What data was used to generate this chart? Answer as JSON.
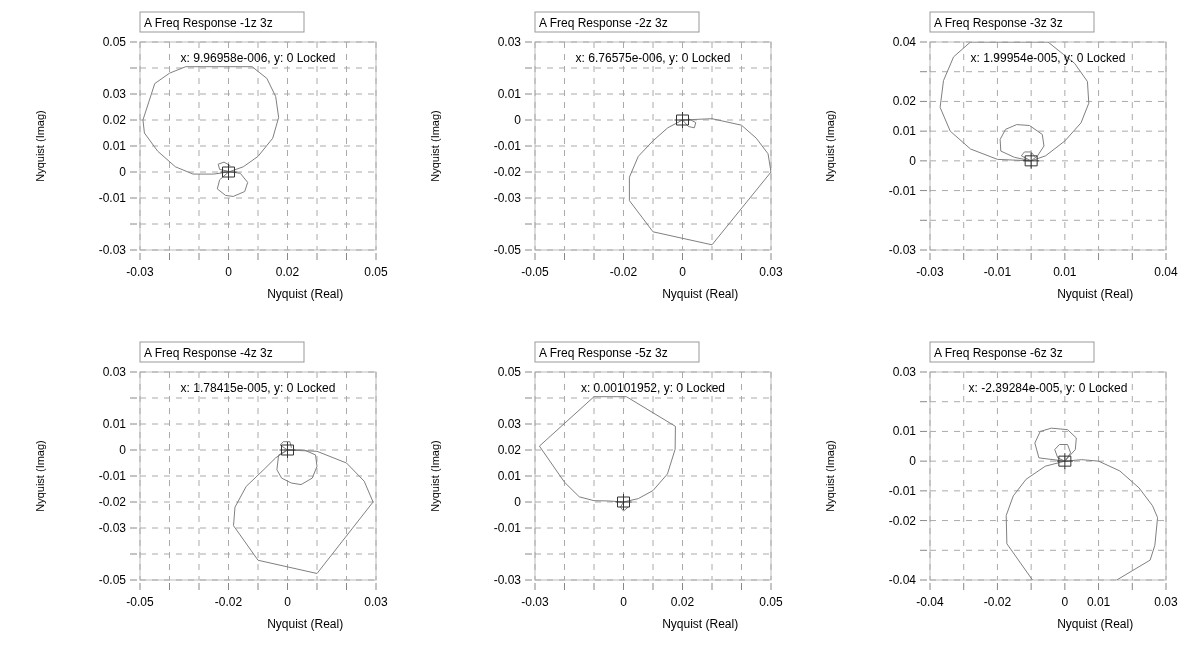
{
  "chart_data": [
    {
      "type": "line",
      "title": "A Freq Response -1z 3z",
      "xlabel": "Nyquist (Real)",
      "ylabel": "Nyquist (Imag)",
      "grid": true,
      "xlim": [
        -0.03,
        0.05
      ],
      "ylim": [
        -0.03,
        0.05
      ],
      "xticks": [
        -0.03,
        {
          "value": -0.02,
          "label": null
        },
        {
          "value": -0.01,
          "label": null
        },
        0,
        {
          "value": 0.01,
          "label": null
        },
        0.02,
        {
          "value": 0.03,
          "label": null
        },
        {
          "value": 0.04,
          "label": null
        },
        0.05
      ],
      "yticks": [
        -0.03,
        {
          "value": -0.02,
          "label": null
        },
        -0.01,
        0,
        0.01,
        0.02,
        0.03,
        {
          "value": 0.04,
          "label": null
        },
        0.05
      ],
      "annotations": [
        "x: 9.96958e-006, y: 0 Locked"
      ],
      "series": [
        {
          "color": "#808080",
          "x": [
            0,
            -0.005,
            -0.012,
            -0.018,
            -0.024,
            -0.0285,
            -0.029,
            -0.027,
            -0.025,
            -0.02,
            -0.0145,
            0.008,
            0.013,
            0.016,
            0.017,
            0.015,
            0.01,
            0.005,
            0,
            -0.003,
            -0.0038,
            -0.001,
            0.0016,
            0.0055,
            0.0065,
            0.004,
            0.001,
            -0.003,
            -0.0035,
            -0.0015,
            0.0005
          ],
          "values": [
            0,
            -0.0008,
            -0.0008,
            0.002,
            0.008,
            0.015,
            0.02,
            0.027,
            0.034,
            0.038,
            0.0405,
            0.0405,
            0.036,
            0.029,
            0.021,
            0.013,
            0.006,
            0.002,
            0,
            -0.003,
            -0.0065,
            -0.009,
            -0.0094,
            -0.0075,
            -0.004,
            -0.0005,
            0,
            0.001,
            0.003,
            0.0038,
            0.0025
          ]
        }
      ]
    },
    {
      "type": "line",
      "title": "A Freq Response -2z 3z",
      "xlabel": "Nyquist (Real)",
      "ylabel": "Nyquist (Imag)",
      "grid": true,
      "xlim": [
        -0.05,
        0.03
      ],
      "ylim": [
        -0.05,
        0.03
      ],
      "xticks": [
        -0.05,
        {
          "value": -0.04,
          "label": null
        },
        {
          "value": -0.03,
          "label": null
        },
        -0.02,
        {
          "value": -0.01,
          "label": null
        },
        0,
        {
          "value": 0.01,
          "label": null
        },
        {
          "value": 0.02,
          "label": null
        },
        0.03
      ],
      "yticks": [
        -0.05,
        {
          "value": -0.04,
          "label": null
        },
        -0.03,
        -0.02,
        -0.01,
        0,
        0.01,
        {
          "value": 0.02,
          "label": null
        },
        0.03
      ],
      "annotations": [
        "x: 6.76575e-006, y: 0 Locked"
      ],
      "series": [
        {
          "color": "#808080",
          "x": [
            0,
            0.01,
            0.02,
            0.025,
            0.029,
            0.03,
            0.01,
            -0.01,
            -0.018,
            -0.018,
            -0.015,
            -0.01,
            -0.005,
            0,
            0.002,
            0.004,
            0.0045,
            0.002
          ],
          "values": [
            0,
            0.0005,
            -0.002,
            -0.007,
            -0.013,
            -0.02,
            -0.048,
            -0.043,
            -0.031,
            -0.022,
            -0.014,
            -0.008,
            -0.003,
            0,
            -0.0025,
            -0.003,
            -0.001,
            0.0005
          ]
        }
      ]
    },
    {
      "type": "line",
      "title": "A Freq Response -3z 3z",
      "xlabel": "Nyquist (Real)",
      "ylabel": "Nyquist (Imag)",
      "grid": true,
      "xlim": [
        -0.03,
        0.04
      ],
      "ylim": [
        -0.03,
        0.04
      ],
      "xticks": [
        -0.03,
        {
          "value": -0.02,
          "label": null
        },
        -0.01,
        {
          "value": 0,
          "label": null
        },
        0.01,
        {
          "value": 0.02,
          "label": null
        },
        {
          "value": 0.03,
          "label": null
        },
        0.04
      ],
      "yticks": [
        -0.03,
        {
          "value": -0.02,
          "label": null
        },
        -0.01,
        0,
        0.01,
        0.02,
        {
          "value": 0.03,
          "label": null
        },
        0.04
      ],
      "annotations": [
        "x: 1.99954e-005, y: 0 Locked"
      ],
      "series": [
        {
          "color": "#808080",
          "x": [
            0,
            -0.01,
            -0.018,
            -0.024,
            -0.027,
            -0.026,
            -0.023,
            -0.018,
            0.005,
            0.0129,
            0.0167,
            0.0171,
            0.0148,
            0.01,
            0.0043,
            0,
            -0.005,
            -0.009,
            -0.0092,
            -0.0076,
            -0.0043,
            -0.0005,
            0.0033,
            0.0038,
            0.0019,
            0,
            -0.0029,
            -0.002,
            0,
            0.001
          ],
          "values": [
            0,
            0.0005,
            0.004,
            0.01,
            0.018,
            0.027,
            0.035,
            0.04,
            0.04,
            0.0328,
            0.0267,
            0.0194,
            0.0128,
            0.0067,
            0.0017,
            0,
            0.0012,
            0.0033,
            0.0072,
            0.0106,
            0.0122,
            0.0119,
            0.0089,
            0.005,
            0.0017,
            0,
            0.0017,
            0.003,
            0.003,
            0.0015
          ]
        }
      ]
    },
    {
      "type": "line",
      "title": "A Freq Response -4z 3z",
      "xlabel": "Nyquist (Real)",
      "ylabel": "Nyquist (Imag)",
      "grid": true,
      "xlim": [
        -0.05,
        0.03
      ],
      "ylim": [
        -0.05,
        0.03
      ],
      "xticks": [
        -0.05,
        {
          "value": -0.04,
          "label": null
        },
        {
          "value": -0.03,
          "label": null
        },
        -0.02,
        {
          "value": -0.01,
          "label": null
        },
        0,
        {
          "value": 0.01,
          "label": null
        },
        {
          "value": 0.02,
          "label": null
        },
        0.03
      ],
      "yticks": [
        -0.05,
        {
          "value": -0.04,
          "label": null
        },
        -0.03,
        -0.02,
        -0.01,
        0,
        0.01,
        {
          "value": 0.02,
          "label": null
        },
        0.03
      ],
      "annotations": [
        "x: 1.78415e-005, y: 0 Locked"
      ],
      "series": [
        {
          "color": "#808080",
          "x": [
            0,
            0.01,
            0.02,
            0.026,
            0.029,
            0.01,
            -0.01,
            -0.0183,
            -0.0178,
            -0.014,
            -0.008,
            -0.004,
            0,
            -0.003,
            -0.0036,
            -0.002,
            0.0013,
            0.0046,
            0.0084,
            0.01,
            0.0095,
            0.0057,
            0,
            -0.0025,
            -0.0014,
            0.0008,
            0.0013
          ],
          "values": [
            0,
            -0.0005,
            -0.005,
            -0.012,
            -0.02,
            -0.0475,
            -0.0424,
            -0.0291,
            -0.022,
            -0.014,
            -0.0075,
            -0.003,
            0,
            -0.0019,
            -0.0076,
            -0.0108,
            -0.0127,
            -0.0133,
            -0.0108,
            -0.0063,
            -0.0019,
            0,
            0,
            0.0019,
            0.0032,
            0.0032,
            0.001
          ]
        }
      ]
    },
    {
      "type": "line",
      "title": "A Freq Response -5z 3z",
      "xlabel": "Nyquist (Real)",
      "ylabel": "Nyquist (Imag)",
      "grid": true,
      "xlim": [
        -0.03,
        0.05
      ],
      "ylim": [
        -0.03,
        0.05
      ],
      "xticks": [
        -0.03,
        {
          "value": -0.02,
          "label": null
        },
        {
          "value": -0.01,
          "label": null
        },
        0,
        {
          "value": 0.01,
          "label": null
        },
        0.02,
        {
          "value": 0.03,
          "label": null
        },
        {
          "value": 0.04,
          "label": null
        },
        0.05
      ],
      "yticks": [
        -0.03,
        {
          "value": -0.02,
          "label": null
        },
        -0.01,
        0,
        0.01,
        0.02,
        0.03,
        {
          "value": 0.04,
          "label": null
        },
        0.05
      ],
      "annotations": [
        "x: 0.00101952, y: 0 Locked"
      ],
      "series": [
        {
          "color": "#808080",
          "x": [
            0,
            -0.005,
            -0.01,
            -0.015,
            -0.02,
            -0.0285,
            -0.01,
            0.001,
            0.0176,
            0.0175,
            0.0149,
            0.01,
            0.005,
            0,
            -0.001,
            0,
            0.0015
          ],
          "values": [
            0,
            0.0004,
            0.0005,
            0.002,
            0.0076,
            0.0215,
            0.0405,
            0.0405,
            0.0291,
            0.0203,
            0.0108,
            0.0044,
            0.0013,
            0,
            -0.002,
            -0.0035,
            -0.002
          ]
        }
      ]
    },
    {
      "type": "line",
      "title": "A Freq Response -6z 3z",
      "xlabel": "Nyquist (Real)",
      "ylabel": "Nyquist (Imag)",
      "grid": true,
      "xlim": [
        -0.04,
        0.03
      ],
      "ylim": [
        -0.04,
        0.03
      ],
      "xticks": [
        -0.04,
        {
          "value": -0.03,
          "label": null
        },
        -0.02,
        {
          "value": -0.01,
          "label": null
        },
        0,
        0.01,
        {
          "value": 0.02,
          "label": null
        },
        0.03
      ],
      "yticks": [
        -0.04,
        {
          "value": -0.03,
          "label": null
        },
        -0.02,
        -0.01,
        0,
        0.01,
        {
          "value": 0.02,
          "label": null
        },
        0.03
      ],
      "annotations": [
        "x: -2.39284e-005, y: 0 Locked"
      ],
      "series": [
        {
          "color": "#808080",
          "x": [
            0,
            0.005,
            0.01,
            0.0163,
            0.022,
            0.026,
            0.0275,
            0.0267,
            0.0253,
            0.0154,
            null,
            -0.0096,
            -0.0172,
            -0.0174,
            -0.0153,
            -0.0115,
            -0.0058,
            0,
            -0.0077,
            -0.0089,
            -0.0073,
            -0.004,
            0.0008,
            0.0034,
            0.0031,
            0,
            -0.0021,
            -0.003,
            -0.0016,
            0.0008,
            0.0017,
            0
          ],
          "values": [
            0,
            0.0005,
            0,
            -0.0033,
            -0.009,
            -0.015,
            -0.019,
            -0.0283,
            -0.0333,
            -0.04,
            null,
            -0.04,
            -0.0278,
            -0.0183,
            -0.0117,
            -0.0061,
            -0.0017,
            0,
            0.0011,
            0.0061,
            0.01,
            0.0111,
            0.0106,
            0.0078,
            0.0039,
            0,
            0.0011,
            0.0039,
            0.0056,
            0.0056,
            0.0028,
            0
          ]
        }
      ]
    }
  ]
}
